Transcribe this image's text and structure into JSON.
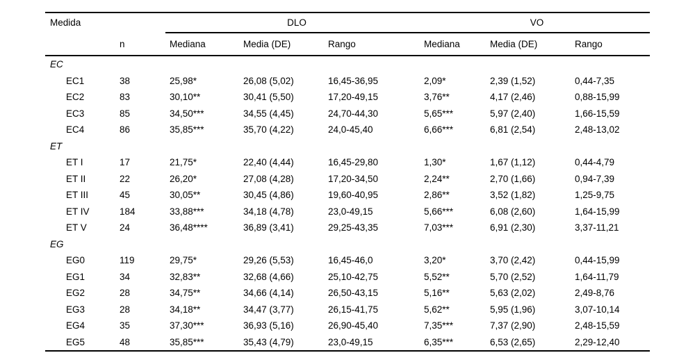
{
  "table": {
    "col1_header": "Medida",
    "n_header": "n",
    "group_headers": [
      {
        "label": "DLO"
      },
      {
        "label": "VO"
      }
    ],
    "sub_headers": [
      "Mediana",
      "Media (DE)",
      "Rango",
      "Mediana",
      "Media (DE)",
      "Rango"
    ],
    "text_color": "#000000",
    "background_color": "#ffffff",
    "sections": [
      {
        "label": "EC",
        "rows": [
          {
            "label": "EC1",
            "n": "38",
            "dlo_mediana": "25,98*",
            "dlo_media": "26,08 (5,02)",
            "dlo_rango": "16,45-36,95",
            "vo_mediana": "2,09*",
            "vo_media": "2,39 (1,52)",
            "vo_rango": "0,44-7,35"
          },
          {
            "label": "EC2",
            "n": "83",
            "dlo_mediana": "30,10**",
            "dlo_media": "30,41 (5,50)",
            "dlo_rango": "17,20-49,15",
            "vo_mediana": "3,76**",
            "vo_media": "4,17 (2,46)",
            "vo_rango": "0,88-15,99"
          },
          {
            "label": "EC3",
            "n": "85",
            "dlo_mediana": "34,50***",
            "dlo_media": "34,55 (4,45)",
            "dlo_rango": "24,70-44,30",
            "vo_mediana": "5,65***",
            "vo_media": "5,97 (2,40)",
            "vo_rango": "1,66-15,59"
          },
          {
            "label": "EC4",
            "n": "86",
            "dlo_mediana": "35,85***",
            "dlo_media": "35,70 (4,22)",
            "dlo_rango": "24,0-45,40",
            "vo_mediana": "6,66***",
            "vo_media": "6,81 (2,54)",
            "vo_rango": "2,48-13,02"
          }
        ]
      },
      {
        "label": "ET",
        "rows": [
          {
            "label": "ET I",
            "n": "17",
            "dlo_mediana": "21,75*",
            "dlo_media": "22,40 (4,44)",
            "dlo_rango": "16,45-29,80",
            "vo_mediana": "1,30*",
            "vo_media": "1,67 (1,12)",
            "vo_rango": "0,44-4,79"
          },
          {
            "label": "ET II",
            "n": "22",
            "dlo_mediana": "26,20*",
            "dlo_media": "27,08 (4,28)",
            "dlo_rango": "17,20-34,50",
            "vo_mediana": "2,24**",
            "vo_media": "2,70 (1,66)",
            "vo_rango": "0,94-7,39"
          },
          {
            "label": "ET III",
            "n": "45",
            "dlo_mediana": "30,05**",
            "dlo_media": "30,45 (4,86)",
            "dlo_rango": "19,60-40,95",
            "vo_mediana": "2,86**",
            "vo_media": "3,52 (1,82)",
            "vo_rango": "1,25-9,75"
          },
          {
            "label": "ET IV",
            "n": "184",
            "dlo_mediana": "33,88***",
            "dlo_media": "34,18 (4,78)",
            "dlo_rango": "23,0-49,15",
            "vo_mediana": "5,66***",
            "vo_media": "6,08 (2,60)",
            "vo_rango": "1,64-15,99"
          },
          {
            "label": "ET V",
            "n": "24",
            "dlo_mediana": "36,48****",
            "dlo_media": "36,89 (3,41)",
            "dlo_rango": "29,25-43,35",
            "vo_mediana": "7,03***",
            "vo_media": "6,91 (2,30)",
            "vo_rango": "3,37-11,21"
          }
        ]
      },
      {
        "label": "EG",
        "rows": [
          {
            "label": "EG0",
            "n": "119",
            "dlo_mediana": "29,75*",
            "dlo_media": "29,26 (5,53)",
            "dlo_rango": "16,45-46,0",
            "vo_mediana": "3,20*",
            "vo_media": "3,70 (2,42)",
            "vo_rango": "0,44-15,99"
          },
          {
            "label": "EG1",
            "n": "34",
            "dlo_mediana": "32,83**",
            "dlo_media": "32,68 (4,66)",
            "dlo_rango": "25,10-42,75",
            "vo_mediana": "5,52**",
            "vo_media": "5,70 (2,52)",
            "vo_rango": "1,64-11,79"
          },
          {
            "label": "EG2",
            "n": "28",
            "dlo_mediana": "34,75**",
            "dlo_media": "34,66 (4,14)",
            "dlo_rango": "26,50-43,15",
            "vo_mediana": "5,16**",
            "vo_media": "5,63 (2,02)",
            "vo_rango": "2,49-8,76"
          },
          {
            "label": "EG3",
            "n": "28",
            "dlo_mediana": "34,18**",
            "dlo_media": "34,47 (3,77)",
            "dlo_rango": "26,15-41,75",
            "vo_mediana": "5,62**",
            "vo_media": "5,95 (1,96)",
            "vo_rango": "3,07-10,14"
          },
          {
            "label": "EG4",
            "n": "35",
            "dlo_mediana": "37,30***",
            "dlo_media": "36,93 (5,16)",
            "dlo_rango": "26,90-45,40",
            "vo_mediana": "7,35***",
            "vo_media": "7,37 (2,90)",
            "vo_rango": "2,48-15,59"
          },
          {
            "label": "EG5",
            "n": "48",
            "dlo_mediana": "35,85***",
            "dlo_media": "35,43 (4,79)",
            "dlo_rango": "23,0-49,15",
            "vo_mediana": "6,35***",
            "vo_media": "6,53 (2,65)",
            "vo_rango": "2,29-12,40"
          }
        ]
      }
    ]
  }
}
